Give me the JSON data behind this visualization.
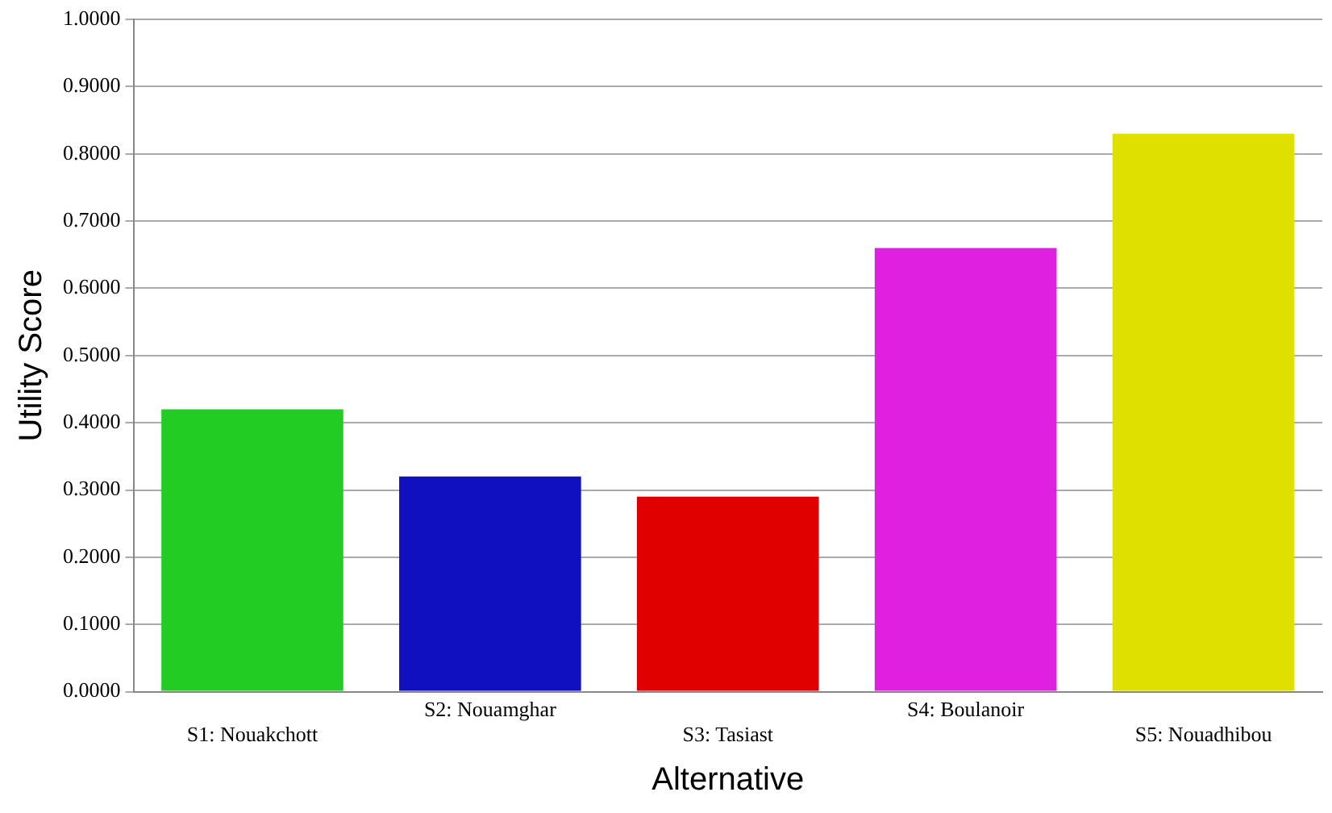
{
  "chart_data": {
    "type": "bar",
    "xlabel": "Alternative",
    "ylabel": "Utility Score",
    "categories": [
      "S1: Nouakchott",
      "S2: Nouamghar",
      "S3: Tasiast",
      "S4: Boulanoir",
      "S5: Nouadhibou"
    ],
    "values": [
      0.42,
      0.32,
      0.29,
      0.66,
      0.83
    ],
    "colors": [
      "#22cc22",
      "#1010c0",
      "#e00000",
      "#e020e0",
      "#e0e000"
    ],
    "ylim": [
      0,
      1
    ],
    "yticks": [
      {
        "value": 0,
        "label": "0.0000"
      },
      {
        "value": 0.1,
        "label": "0.1000"
      },
      {
        "value": 0.2,
        "label": "0.2000"
      },
      {
        "value": 0.3,
        "label": "0.3000"
      },
      {
        "value": 0.4,
        "label": "0.4000"
      },
      {
        "value": 0.5,
        "label": "0.5000"
      },
      {
        "value": 0.6,
        "label": "0.6000"
      },
      {
        "value": 0.7,
        "label": "0.7000"
      },
      {
        "value": 0.8,
        "label": "0.8000"
      },
      {
        "value": 0.9,
        "label": "0.9000"
      },
      {
        "value": 1,
        "label": "1.0000"
      }
    ],
    "grid": "y"
  }
}
